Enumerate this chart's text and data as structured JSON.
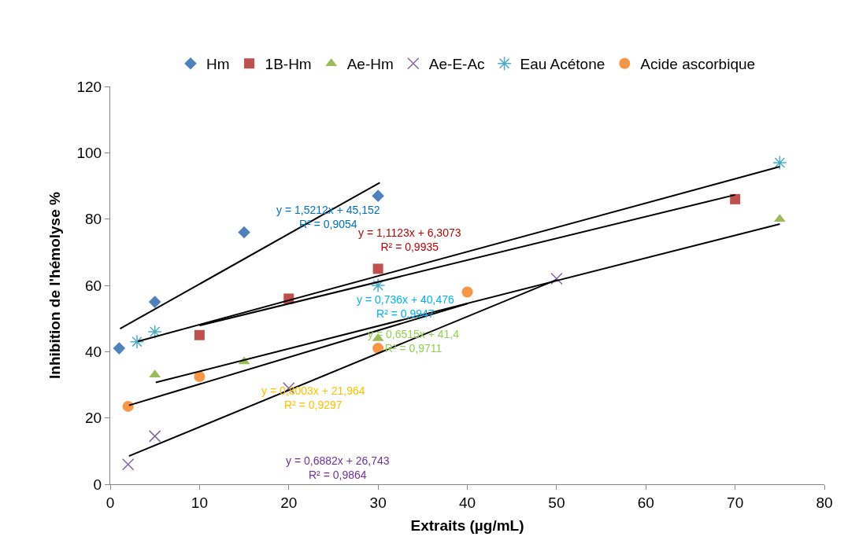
{
  "chart_data": {
    "type": "scatter",
    "xlabel": "Extraits (µg/mL)",
    "ylabel": "Inhibition de l'hémolyse %",
    "xlim": [
      0,
      80
    ],
    "xticks": [
      0,
      10,
      20,
      30,
      40,
      50,
      60,
      70,
      80
    ],
    "ylim": [
      0,
      120
    ],
    "yticks": [
      0,
      20,
      40,
      60,
      80,
      100,
      120
    ],
    "grid": false,
    "legend": "top",
    "series": [
      {
        "name": "Hm",
        "color": "#4f81bd",
        "marker": "diamond",
        "x": [
          1,
          5,
          15,
          30
        ],
        "values": [
          41,
          55,
          76,
          87
        ]
      },
      {
        "name": "1B-Hm",
        "color": "#c0504d",
        "marker": "square",
        "x": [
          10,
          20,
          30,
          70
        ],
        "values": [
          45,
          56,
          65,
          86
        ]
      },
      {
        "name": "Ae-Hm",
        "color": "#9bbb59",
        "marker": "triangle",
        "x": [
          5,
          15,
          30,
          75
        ],
        "values": [
          33,
          37,
          44,
          80
        ]
      },
      {
        "name": "Ae-E-Ac",
        "color": "#8064a2",
        "marker": "cross",
        "x": [
          2,
          5,
          20,
          50
        ],
        "values": [
          6,
          14.5,
          29,
          62
        ]
      },
      {
        "name": "Eau Acétone",
        "color": "#4bacc6",
        "marker": "cross",
        "x": [
          3,
          5,
          30,
          75
        ],
        "values": [
          43,
          46,
          60,
          97
        ]
      },
      {
        "name": "Acide ascorbique",
        "color": "#f79646",
        "marker": "circle",
        "x": [
          2,
          10,
          30,
          40
        ],
        "values": [
          23.5,
          32.5,
          41,
          58
        ]
      },
      {
        "type": "line",
        "color": "#000000",
        "x": [
          1.1,
          30.2
        ],
        "values": [
          46.9,
          91
        ]
      },
      {
        "type": "line",
        "color": "#000000",
        "x": [
          10,
          70
        ],
        "values": [
          47.9,
          87.3
        ]
      },
      {
        "type": "line",
        "color": "#000000",
        "x": [
          5.1,
          75
        ],
        "values": [
          30.7,
          78.5
        ]
      },
      {
        "type": "line",
        "color": "#000000",
        "x": [
          2.1,
          50
        ],
        "values": [
          8.5,
          61.7
        ]
      },
      {
        "type": "line",
        "color": "#000000",
        "x": [
          3.1,
          75
        ],
        "values": [
          43.1,
          95.8
        ]
      },
      {
        "type": "line",
        "color": "#000000",
        "x": [
          2.1,
          40
        ],
        "values": [
          23.8,
          54.5
        ]
      }
    ],
    "annotations": [
      "y = 1,5212x + 45,152\nR² = 0,9054",
      "y = 1,1123x + 6,3073\nR² = 0,9935",
      "y = 0,736x + 40,476\nR² = 0,9947",
      "y = 0,6515x + 41,4\nR² = 0,9711",
      "y = 0,8003x + 21,964\nR² = 0,9297",
      "y = 0,6882x + 26,743\nR² = 0,9864"
    ]
  }
}
